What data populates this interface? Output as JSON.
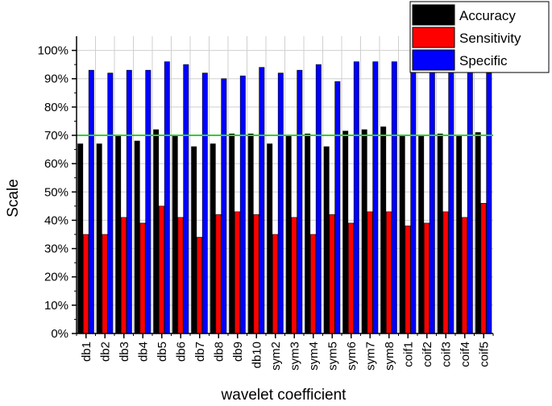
{
  "chart_data": {
    "type": "bar",
    "title": "",
    "xlabel": "wavelet coefficient",
    "ylabel": "Scale",
    "ylim": [
      0,
      100
    ],
    "y_ticks": [
      "0%",
      "10%",
      "20%",
      "30%",
      "40%",
      "50%",
      "60%",
      "70%",
      "80%",
      "90%",
      "100%"
    ],
    "y_tick_values": [
      0,
      10,
      20,
      30,
      40,
      50,
      60,
      70,
      80,
      90,
      100
    ],
    "categories": [
      "db1",
      "db2",
      "db3",
      "db4",
      "db5",
      "db6",
      "db7",
      "db8",
      "db9",
      "db10",
      "sym2",
      "sym3",
      "sym4",
      "sym5",
      "sym6",
      "sym7",
      "sym8",
      "coif1",
      "coif2",
      "coif3",
      "coif4",
      "coif5"
    ],
    "series": [
      {
        "name": "Accuracy",
        "color": "#000000",
        "values": [
          67,
          67,
          70,
          68,
          72,
          70,
          66,
          67,
          70.5,
          70.5,
          67,
          70,
          70.5,
          66,
          71.5,
          72,
          73,
          70,
          70,
          70.5,
          70,
          71
        ]
      },
      {
        "name": "Sensitivity",
        "color": "#ff0000",
        "values": [
          35,
          35,
          41,
          39,
          45,
          41,
          34,
          42,
          43,
          42,
          35,
          41,
          35,
          42,
          39,
          43,
          43,
          38,
          39,
          43,
          41,
          46
        ]
      },
      {
        "name": "Specific",
        "color": "#0000ff",
        "values": [
          93,
          92,
          93,
          93,
          96,
          95,
          92,
          90,
          91,
          94,
          92,
          93,
          95,
          89,
          96,
          96,
          96,
          96,
          96,
          93,
          93,
          92
        ]
      }
    ],
    "reference_line": {
      "value": 70,
      "color": "#33cc33"
    },
    "grid": true,
    "legend_position": "top-right"
  }
}
